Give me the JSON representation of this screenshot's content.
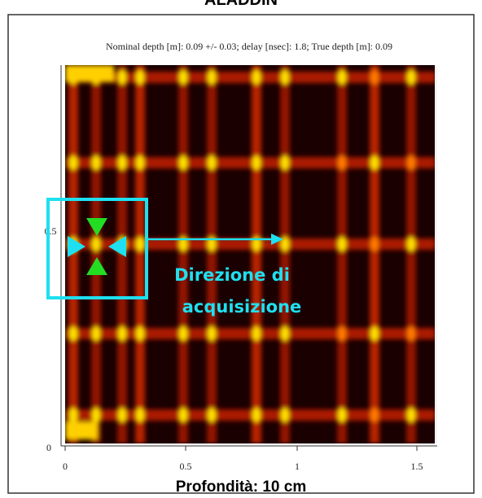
{
  "header": {
    "title": "ALADDIN",
    "info": "Nominal depth [m]: 0.09 +/- 0.03;   delay [nsec]: 1.8;   True depth [m]: 0.09"
  },
  "axes": {
    "x_tick_labels": [
      "0",
      "0.5",
      "1",
      "1.5"
    ],
    "y_tick_labels": [
      "0",
      "0.5"
    ]
  },
  "annotation": {
    "lines": [
      "Direzione di",
      "acquisizione"
    ]
  },
  "caption": "Profondità: 10 cm"
}
